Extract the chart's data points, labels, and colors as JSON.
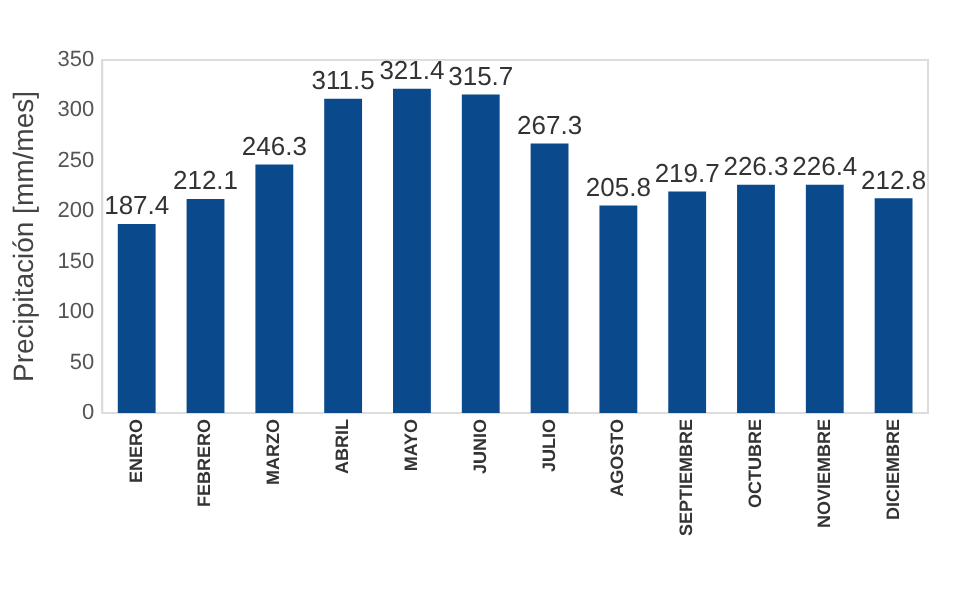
{
  "chart_data": {
    "type": "bar",
    "ylabel": "Precipitación [mm/mes]",
    "categories": [
      "ENERO",
      "FEBRERO",
      "MARZO",
      "ABRIL",
      "MAYO",
      "JUNIO",
      "JULIO",
      "AGOSTO",
      "SEPTIEMBRE",
      "OCTUBRE",
      "NOVIEMBRE",
      "DICIEMBRE"
    ],
    "values": [
      187.4,
      212.1,
      246.3,
      311.5,
      321.4,
      315.7,
      267.3,
      205.8,
      219.7,
      226.3,
      226.4,
      212.8
    ],
    "color": "#0a4a8c",
    "ylim": [
      0,
      350
    ],
    "yticks": [
      0,
      50,
      100,
      150,
      200,
      250,
      300,
      350
    ],
    "grid": false,
    "legend": false,
    "data_labels": true
  }
}
